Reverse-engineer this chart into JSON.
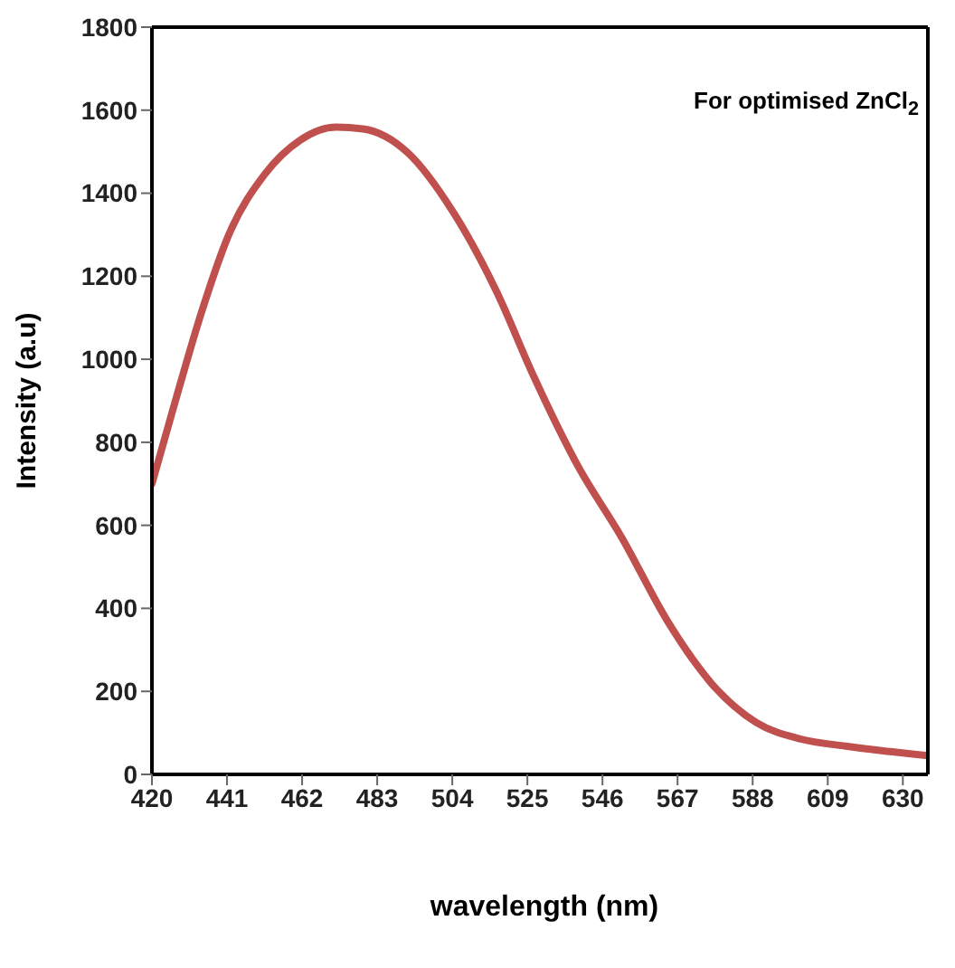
{
  "chart_data": {
    "type": "line",
    "xlabel": "wavelength (nm)",
    "ylabel": "Intensity (a.u)",
    "annotations": [
      "For optimised ZnCl$_{2}$"
    ],
    "x": [
      420,
      426.5,
      434,
      441.5,
      451.5,
      461.5,
      471.5,
      479,
      491.5,
      504,
      516.5,
      526.5,
      539,
      551.5,
      564,
      576.5,
      589,
      601.5,
      614,
      626.5,
      637
    ],
    "series": [
      {
        "color": "#c0504d",
        "values": [
          700,
          898,
          1117,
          1300,
          1445,
          1528,
          1559,
          1555,
          1498,
          1358,
          1161,
          964,
          745,
          569,
          372,
          219,
          125,
          85,
          68,
          55,
          45
        ]
      }
    ],
    "xlim": [
      420,
      637
    ],
    "xticks": [
      420,
      441,
      462,
      483,
      504,
      525,
      546,
      567,
      588,
      609,
      630
    ],
    "ylim": [
      0,
      1800
    ],
    "yticks": [
      0,
      200,
      400,
      600,
      800,
      1000,
      1200,
      1400,
      1600,
      1800
    ],
    "grid": false,
    "legend": false,
    "marker": "none",
    "line_style": "solid"
  }
}
